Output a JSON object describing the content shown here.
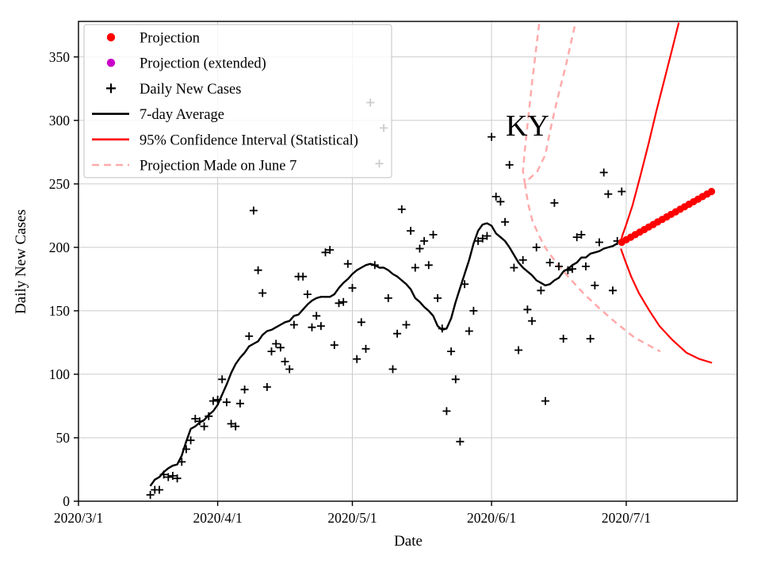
{
  "chart_data": {
    "type": "scatter",
    "annotation": {
      "text": "KY",
      "date": "6/9",
      "value": 296
    },
    "xlabel": "Date",
    "ylabel": "Daily New Cases",
    "x_tick_labels": [
      "2020/3/1",
      "2020/4/1",
      "2020/5/1",
      "2020/6/1",
      "2020/7/1"
    ],
    "y_tick_labels": [
      0,
      50,
      100,
      150,
      200,
      250,
      300,
      350
    ],
    "ylim": [
      0,
      378
    ],
    "xlim_days_from_march1": [
      0,
      146.7
    ],
    "grid": true,
    "legend_position": "upper left",
    "colors": {
      "projection": "#ff0000",
      "projection_extended": "#c800c8",
      "daily_new_cases": "#000000",
      "seven_day_average": "#000000",
      "confidence_interval": "#ff0000",
      "june7_projection": "#ffaaaa",
      "gridline": "#cbcbcb",
      "frame": "#000000",
      "legend_border": "#cccccc"
    },
    "legend": [
      {
        "label": "Projection",
        "marker": "dot",
        "color": "#ff0000"
      },
      {
        "label": "Projection (extended)",
        "marker": "dot",
        "color": "#c800c8"
      },
      {
        "label": "Daily New Cases",
        "marker": "plus",
        "color": "#000000"
      },
      {
        "label": "7-day Average",
        "marker": "line",
        "color": "#000000"
      },
      {
        "label": "95% Confidence Interval (Statistical)",
        "marker": "line",
        "color": "#ff0000"
      },
      {
        "label": "Projection Made on June 7",
        "marker": "dashed",
        "color": "#ffaaaa"
      }
    ],
    "series": {
      "daily_new_cases": {
        "start_date": "3/17",
        "frequency": "daily",
        "values": [
          5,
          9,
          9,
          21,
          19,
          20,
          18,
          31,
          41,
          48,
          65,
          63,
          59,
          67,
          79,
          80,
          96,
          78,
          61,
          59,
          77,
          88,
          130,
          229,
          182,
          164,
          90,
          118,
          124,
          121,
          110,
          104,
          139,
          177,
          177,
          163,
          137,
          146,
          138,
          196,
          198,
          123,
          156,
          157,
          187,
          168,
          112,
          141,
          120,
          314,
          186,
          266,
          294,
          160,
          104,
          132,
          230,
          139,
          213,
          184,
          199,
          205,
          186,
          210,
          160,
          136,
          71,
          118,
          96,
          47,
          171,
          134,
          150,
          205,
          207,
          209,
          287,
          240,
          236,
          220,
          265,
          184,
          119,
          190,
          151,
          142,
          200,
          166,
          79,
          188,
          235,
          185,
          128,
          182,
          183,
          208,
          210,
          185,
          128,
          170,
          204,
          259,
          242,
          166,
          205,
          244
        ]
      },
      "seven_day_average": {
        "start_date": "3/17",
        "frequency": "daily",
        "values": [
          12,
          17,
          19,
          23,
          26,
          28,
          29,
          36,
          47,
          57,
          59,
          62,
          64,
          68,
          71,
          76,
          84,
          92,
          101,
          108,
          113,
          117,
          122,
          124,
          126,
          131,
          134,
          135,
          137,
          139,
          141,
          142,
          146,
          147,
          151,
          155,
          158,
          160,
          161,
          161,
          161,
          163,
          168,
          172,
          175,
          179,
          182,
          184,
          186,
          187,
          186,
          184,
          184,
          182,
          179,
          177,
          174,
          171,
          167,
          160,
          157,
          153,
          150,
          146,
          138,
          135,
          136,
          144,
          157,
          168,
          179,
          190,
          203,
          213,
          218,
          219,
          217,
          211,
          208,
          205,
          200,
          194,
          188,
          184,
          181,
          178,
          174,
          172,
          170,
          171,
          174,
          176,
          181,
          183,
          186,
          188,
          192,
          192,
          195,
          196,
          197,
          199,
          200,
          201,
          203
        ]
      },
      "projection": {
        "start_date": "6/30",
        "frequency": "daily",
        "values": [
          204,
          206,
          208,
          210,
          212,
          214,
          216,
          218,
          220,
          222,
          224,
          226,
          228,
          230,
          232,
          234,
          236,
          238,
          240,
          242,
          244
        ]
      },
      "projection_extended": {
        "start_date": null,
        "values": []
      },
      "ci_statistical_upper": {
        "days_from_march1": [
          120.8,
          121.1,
          122.0,
          123.4,
          125.2,
          127.0,
          128.7,
          130.5,
          132.3,
          133.7
        ],
        "values": [
          204,
          209,
          218,
          233,
          257,
          282,
          307,
          332,
          357,
          377
        ]
      },
      "ci_statistical_lower": {
        "days_from_march1": [
          120.8,
          121.7,
          123.1,
          124.8,
          127.0,
          129.4,
          132.3,
          135.4,
          138.3,
          141.1
        ],
        "values": [
          199,
          190,
          177,
          164,
          151,
          138,
          127,
          117,
          112,
          109
        ]
      },
      "june7_projection_branches": [
        {
          "days_from_march1": [
            102.6,
            101.1,
            100.1,
            99.4,
            99.0,
            99.4
          ],
          "values": [
            376,
            332,
            300,
            276,
            260,
            251
          ]
        },
        {
          "days_from_march1": [
            110.5,
            108.6,
            106.6,
            105.0,
            104.0,
            102.2,
            100.4,
            99.5
          ],
          "values": [
            374,
            344,
            316,
            291,
            273,
            260,
            254,
            251
          ]
        },
        {
          "days_from_march1": [
            99.4,
            100.1,
            101.1,
            102.6,
            104.3,
            106.6,
            109.3,
            112.4,
            116.0,
            119.9,
            123.8,
            126.9,
            129.6
          ],
          "values": [
            251,
            235,
            221,
            209,
            198,
            187,
            176,
            164,
            152,
            140,
            129,
            123,
            118
          ]
        }
      ]
    }
  }
}
